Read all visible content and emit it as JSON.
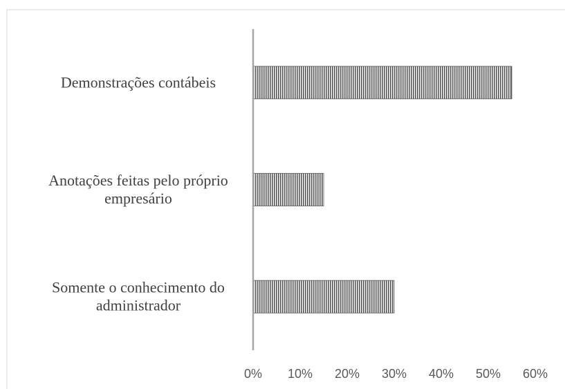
{
  "chart_data": {
    "type": "bar",
    "orientation": "horizontal",
    "categories": [
      [
        "Demonstrações contábeis"
      ],
      [
        "Anotações feitas pelo próprio",
        "empresário"
      ],
      [
        "Somente o conhecimento do",
        "administrador"
      ]
    ],
    "values": [
      55,
      15,
      30
    ],
    "x_ticks": [
      "0%",
      "10%",
      "20%",
      "30%",
      "40%",
      "50%",
      "60%"
    ],
    "xlim": [
      0,
      60
    ],
    "title": "",
    "xlabel": "",
    "ylabel": "",
    "bar_fill": "vertical-hatch",
    "bar_color": "#555555",
    "axis_color": "#a6a6a6",
    "grid": false,
    "legend": "none"
  }
}
